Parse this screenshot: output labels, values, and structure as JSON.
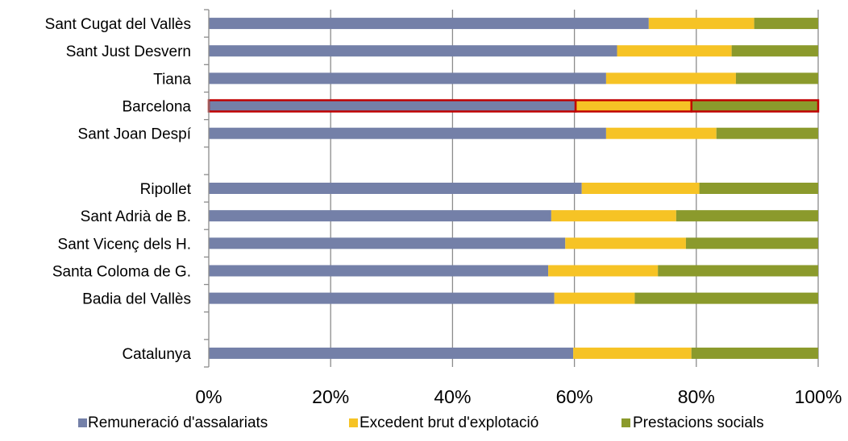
{
  "chart_data": {
    "type": "bar",
    "orientation": "horizontal",
    "stacked": "percent",
    "categories": [
      "Sant Cugat del Vallès",
      "Sant Just Desvern",
      "Tiana",
      "Barcelona",
      "Sant Joan Despí",
      "",
      "Ripollet",
      "Sant Adrià de B.",
      "Sant Vicenç dels H.",
      "Santa Coloma de G.",
      "Badia del Vallès",
      "",
      "Catalunya"
    ],
    "series": [
      {
        "name": "Remuneració d'assalariats",
        "color": "#7480a8",
        "values": [
          72.2,
          67.0,
          65.2,
          60.2,
          65.2,
          null,
          61.2,
          56.2,
          58.5,
          55.7,
          56.7,
          null,
          59.8
        ]
      },
      {
        "name": "Excedent brut d'explotació",
        "color": "#f6c325",
        "values": [
          17.3,
          18.8,
          21.3,
          19.0,
          18.1,
          null,
          19.3,
          20.5,
          19.8,
          18.0,
          13.2,
          null,
          19.4
        ]
      },
      {
        "name": "Prestacions socials",
        "color": "#8b9a2c",
        "values": [
          10.5,
          14.2,
          13.5,
          20.8,
          16.7,
          null,
          19.5,
          23.3,
          21.7,
          26.3,
          30.1,
          null,
          20.8
        ]
      }
    ],
    "highlighted_category": "Barcelona",
    "highlight_color": "#c00000",
    "xlim": [
      0,
      100
    ],
    "xticks": [
      "0%",
      "20%",
      "40%",
      "60%",
      "80%",
      "100%"
    ],
    "grid": "vertical",
    "legend_position": "bottom",
    "title": "",
    "xlabel": "",
    "ylabel": ""
  }
}
